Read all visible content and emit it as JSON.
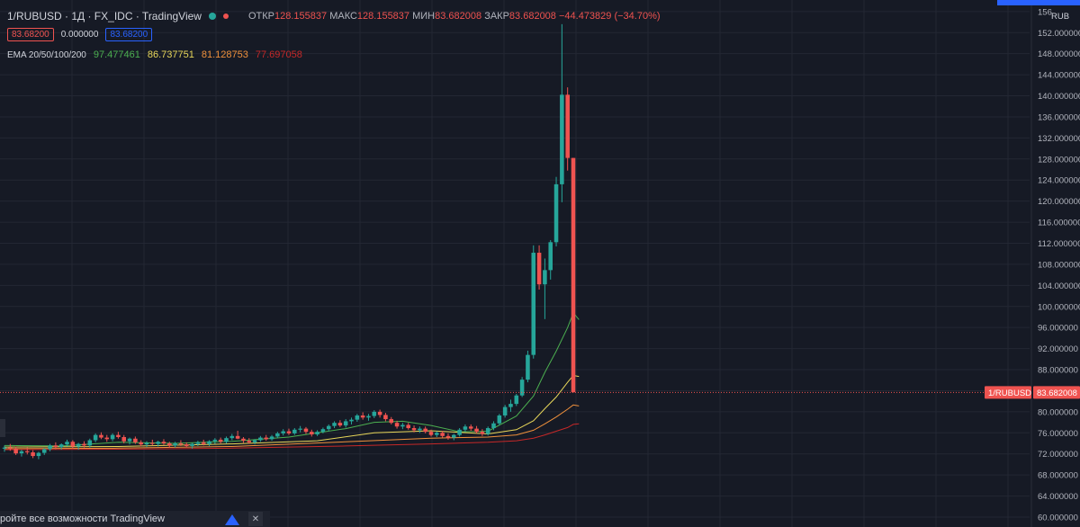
{
  "header": {
    "symbol": "1/RUBUSD · 1Д · FX_IDC · TradingView",
    "open_label": "ОТКР",
    "open_value": "128.155837",
    "high_label": "МАКС",
    "high_value": "128.155837",
    "low_label": "МИН",
    "low_value": "83.682008",
    "close_label": "ЗАКР",
    "close_value": "83.682008",
    "change": "−44.473829 (−34.70%)",
    "bid": "83.68200",
    "spread": "0.000000",
    "ask": "83.68200",
    "ema_label": "EMA 20/50/100/200",
    "ema_values": [
      "97.477461",
      "86.737751",
      "81.128753",
      "77.697058"
    ]
  },
  "banner": {
    "text": "ройте все возможности TradingView",
    "close": "✕"
  },
  "colors": {
    "up": "#26a69a",
    "down": "#ef5350",
    "ema20": "#4caf50",
    "ema50": "#e8d75a",
    "ema100": "#f0913c",
    "ema200": "#c62828",
    "bg": "#161a25"
  },
  "chart_data": {
    "type": "candlestick",
    "currency": "RUB",
    "ylim": [
      60,
      156
    ],
    "y_ticks": [
      "60.000000",
      "64.000000",
      "68.000000",
      "72.000000",
      "76.000000",
      "80.000000",
      "84.000000",
      "88.000000",
      "92.000000",
      "96.000000",
      "100.000000",
      "104.000000",
      "108.000000",
      "112.000000",
      "116.000000",
      "120.000000",
      "124.000000",
      "128.000000",
      "132.000000",
      "136.000000",
      "140.000000",
      "144.000000",
      "148.000000",
      "152.000000",
      "156"
    ],
    "price_line": {
      "label": "1/RUBUSD",
      "value": 83.682008,
      "value_text": "83.682008"
    },
    "candles": [
      [
        73.0,
        73.6,
        72.4,
        73.2
      ],
      [
        73.2,
        73.9,
        72.6,
        73.0
      ],
      [
        73.0,
        73.4,
        71.8,
        72.1
      ],
      [
        72.1,
        72.8,
        71.5,
        72.5
      ],
      [
        72.5,
        73.2,
        71.9,
        72.3
      ],
      [
        72.3,
        72.7,
        71.2,
        71.6
      ],
      [
        71.6,
        72.4,
        71.0,
        72.2
      ],
      [
        72.2,
        73.1,
        71.8,
        72.9
      ],
      [
        72.9,
        73.9,
        72.5,
        73.6
      ],
      [
        73.6,
        74.2,
        72.9,
        73.3
      ],
      [
        73.3,
        74.0,
        72.8,
        73.8
      ],
      [
        73.8,
        74.7,
        73.4,
        74.3
      ],
      [
        74.3,
        74.6,
        73.0,
        73.4
      ],
      [
        73.4,
        74.1,
        72.8,
        73.9
      ],
      [
        73.9,
        74.4,
        73.2,
        73.6
      ],
      [
        73.6,
        74.9,
        73.2,
        74.6
      ],
      [
        74.6,
        75.9,
        74.2,
        75.6
      ],
      [
        75.6,
        76.1,
        74.8,
        75.1
      ],
      [
        75.1,
        75.6,
        74.3,
        74.8
      ],
      [
        74.8,
        75.9,
        74.4,
        75.6
      ],
      [
        75.6,
        76.2,
        74.9,
        75.2
      ],
      [
        75.2,
        75.6,
        74.0,
        74.4
      ],
      [
        74.4,
        75.1,
        73.8,
        74.9
      ],
      [
        74.9,
        75.3,
        73.9,
        74.2
      ],
      [
        74.2,
        74.6,
        73.4,
        73.8
      ],
      [
        73.8,
        74.4,
        73.3,
        74.1
      ],
      [
        74.1,
        74.7,
        73.6,
        73.9
      ],
      [
        73.9,
        74.5,
        73.4,
        74.3
      ],
      [
        74.3,
        74.8,
        73.7,
        74.0
      ],
      [
        74.0,
        74.3,
        73.2,
        73.6
      ],
      [
        73.6,
        74.3,
        73.2,
        74.0
      ],
      [
        74.0,
        74.6,
        73.5,
        73.8
      ],
      [
        73.8,
        74.2,
        73.2,
        73.5
      ],
      [
        73.5,
        74.1,
        73.0,
        73.9
      ],
      [
        73.9,
        74.5,
        73.5,
        74.2
      ],
      [
        74.2,
        74.7,
        73.6,
        73.9
      ],
      [
        73.9,
        74.6,
        73.5,
        74.4
      ],
      [
        74.4,
        75.0,
        73.9,
        74.7
      ],
      [
        74.7,
        75.1,
        74.0,
        74.3
      ],
      [
        74.3,
        75.3,
        74.0,
        75.0
      ],
      [
        75.0,
        75.8,
        74.6,
        75.4
      ],
      [
        75.4,
        76.4,
        74.8,
        74.9
      ],
      [
        74.9,
        75.2,
        74.1,
        74.5
      ],
      [
        74.5,
        75.0,
        73.9,
        74.2
      ],
      [
        74.2,
        74.8,
        73.8,
        74.6
      ],
      [
        74.6,
        75.4,
        74.3,
        75.1
      ],
      [
        75.1,
        75.6,
        74.5,
        74.8
      ],
      [
        74.8,
        75.6,
        74.5,
        75.3
      ],
      [
        75.3,
        76.2,
        75.0,
        75.9
      ],
      [
        75.9,
        76.7,
        75.5,
        76.3
      ],
      [
        76.3,
        76.8,
        75.6,
        75.9
      ],
      [
        75.9,
        76.9,
        75.6,
        76.6
      ],
      [
        76.6,
        77.3,
        76.1,
        76.8
      ],
      [
        76.8,
        77.1,
        75.8,
        76.2
      ],
      [
        76.2,
        76.6,
        75.3,
        75.7
      ],
      [
        75.7,
        76.5,
        75.4,
        76.2
      ],
      [
        76.2,
        77.0,
        75.9,
        76.7
      ],
      [
        76.7,
        77.6,
        76.3,
        77.3
      ],
      [
        77.3,
        78.2,
        76.9,
        77.9
      ],
      [
        77.9,
        78.4,
        77.1,
        77.4
      ],
      [
        77.4,
        78.6,
        77.0,
        78.2
      ],
      [
        78.2,
        78.9,
        77.6,
        78.5
      ],
      [
        78.5,
        79.6,
        78.1,
        79.3
      ],
      [
        79.3,
        79.9,
        78.5,
        78.9
      ],
      [
        78.9,
        79.6,
        78.3,
        79.2
      ],
      [
        79.2,
        80.3,
        78.8,
        80.0
      ],
      [
        80.0,
        80.4,
        78.9,
        79.4
      ],
      [
        79.4,
        79.8,
        78.2,
        78.6
      ],
      [
        78.6,
        79.0,
        77.6,
        77.9
      ],
      [
        77.9,
        78.3,
        76.8,
        77.2
      ],
      [
        77.2,
        77.9,
        76.7,
        77.5
      ],
      [
        77.5,
        77.9,
        76.6,
        76.9
      ],
      [
        76.9,
        77.4,
        76.1,
        76.5
      ],
      [
        76.5,
        77.2,
        76.0,
        76.8
      ],
      [
        76.8,
        77.2,
        75.9,
        76.2
      ],
      [
        76.2,
        76.6,
        75.3,
        75.6
      ],
      [
        75.6,
        76.3,
        75.2,
        76.0
      ],
      [
        76.0,
        76.4,
        75.1,
        75.4
      ],
      [
        75.4,
        75.9,
        74.7,
        75.1
      ],
      [
        75.1,
        75.8,
        74.6,
        75.6
      ],
      [
        75.6,
        76.9,
        75.3,
        76.6
      ],
      [
        76.6,
        77.6,
        76.2,
        77.2
      ],
      [
        77.2,
        77.6,
        76.4,
        76.8
      ],
      [
        76.8,
        77.3,
        75.9,
        76.2
      ],
      [
        76.2,
        76.7,
        75.4,
        75.8
      ],
      [
        75.8,
        77.2,
        75.5,
        76.9
      ],
      [
        76.9,
        78.2,
        76.5,
        77.8
      ],
      [
        77.8,
        79.6,
        77.4,
        79.3
      ],
      [
        79.3,
        81.3,
        78.9,
        80.9
      ],
      [
        80.9,
        82.3,
        80.0,
        81.5
      ],
      [
        81.5,
        83.4,
        81.1,
        83.1
      ],
      [
        83.1,
        86.6,
        82.8,
        86.1
      ],
      [
        86.1,
        91.6,
        85.6,
        90.8
      ],
      [
        90.8,
        111.6,
        90.1,
        110.2
      ],
      [
        110.2,
        111.6,
        103.2,
        104.2
      ],
      [
        104.2,
        109.1,
        97.6,
        106.9
      ],
      [
        106.9,
        112.6,
        105.1,
        112.2
      ],
      [
        112.2,
        124.6,
        111.4,
        123.2
      ],
      [
        123.2,
        153.6,
        119.8,
        140.2
      ],
      [
        140.2,
        141.6,
        125.8,
        128.2
      ],
      [
        128.2,
        128.2,
        83.7,
        83.7
      ]
    ],
    "ema": [
      {
        "name": "EMA 20",
        "key": "ema20",
        "points": [
          [
            0,
            73.6
          ],
          [
            10,
            73.5
          ],
          [
            20,
            74.2
          ],
          [
            30,
            74.0
          ],
          [
            40,
            74.4
          ],
          [
            50,
            75.2
          ],
          [
            60,
            76.8
          ],
          [
            65,
            78.0
          ],
          [
            70,
            78.2
          ],
          [
            75,
            77.4
          ],
          [
            80,
            76.2
          ],
          [
            85,
            76.3
          ],
          [
            90,
            79.2
          ],
          [
            93,
            83.0
          ],
          [
            95,
            87.5
          ],
          [
            97,
            91.5
          ],
          [
            99,
            96.0
          ],
          [
            100,
            98.8
          ],
          [
            101,
            97.5
          ]
        ]
      },
      {
        "name": "EMA 50",
        "key": "ema50",
        "points": [
          [
            0,
            73.3
          ],
          [
            20,
            73.4
          ],
          [
            40,
            73.9
          ],
          [
            55,
            74.5
          ],
          [
            65,
            76.0
          ],
          [
            75,
            76.4
          ],
          [
            85,
            75.8
          ],
          [
            90,
            76.6
          ],
          [
            93,
            78.3
          ],
          [
            95,
            80.6
          ],
          [
            97,
            82.8
          ],
          [
            99,
            85.6
          ],
          [
            100,
            86.9
          ],
          [
            101,
            86.7
          ]
        ]
      },
      {
        "name": "EMA 100",
        "key": "ema100",
        "points": [
          [
            0,
            73.0
          ],
          [
            20,
            73.1
          ],
          [
            40,
            73.4
          ],
          [
            60,
            74.3
          ],
          [
            75,
            75.0
          ],
          [
            85,
            75.2
          ],
          [
            90,
            75.6
          ],
          [
            93,
            76.5
          ],
          [
            95,
            77.7
          ],
          [
            97,
            79.0
          ],
          [
            99,
            80.5
          ],
          [
            100,
            81.3
          ],
          [
            101,
            81.1
          ]
        ]
      },
      {
        "name": "EMA 200",
        "key": "ema200",
        "points": [
          [
            0,
            72.8
          ],
          [
            20,
            72.9
          ],
          [
            40,
            73.1
          ],
          [
            60,
            73.5
          ],
          [
            75,
            73.9
          ],
          [
            85,
            74.2
          ],
          [
            90,
            74.5
          ],
          [
            93,
            75.0
          ],
          [
            95,
            75.6
          ],
          [
            97,
            76.3
          ],
          [
            99,
            77.0
          ],
          [
            100,
            77.6
          ],
          [
            101,
            77.7
          ]
        ]
      }
    ],
    "x_axis": []
  }
}
